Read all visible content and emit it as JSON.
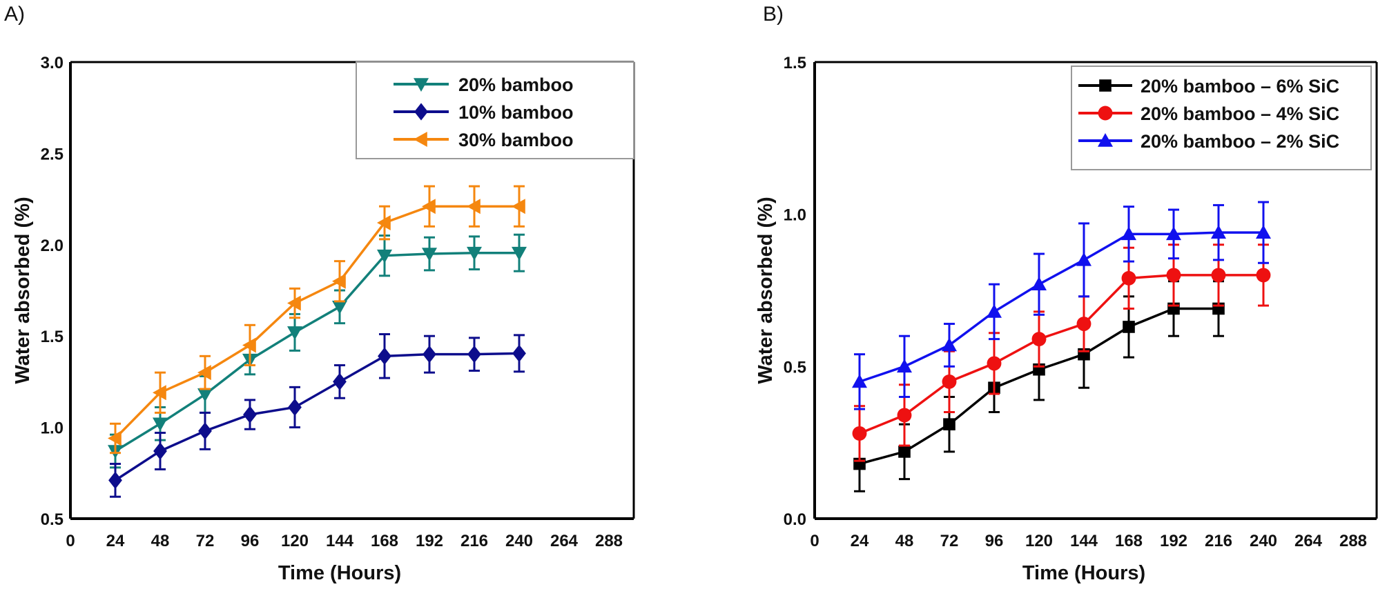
{
  "chart_data": [
    {
      "panel_label": "A)",
      "type": "line",
      "xlabel": "Time (Hours)",
      "ylabel": "Water absorbed (%)",
      "xlim": [
        0,
        288
      ],
      "ylim": [
        0.5,
        3.0
      ],
      "xticks": [
        0,
        24,
        48,
        72,
        96,
        120,
        144,
        168,
        192,
        216,
        240,
        264,
        288
      ],
      "yticks": [
        "0.5",
        "1.0",
        "1.5",
        "2.0",
        "2.5",
        "3.0"
      ],
      "grid": false,
      "legend_position": "top-right",
      "x": [
        24,
        48,
        72,
        96,
        120,
        144,
        168,
        192,
        216,
        240
      ],
      "series": [
        {
          "name": "20% bamboo",
          "color": "#12807a",
          "marker": "triangle-down",
          "values": [
            0.87,
            1.02,
            1.18,
            1.37,
            1.52,
            1.66,
            1.94,
            1.95,
            1.955,
            1.955
          ],
          "error": [
            0.09,
            0.09,
            0.1,
            0.08,
            0.1,
            0.09,
            0.11,
            0.09,
            0.09,
            0.1
          ]
        },
        {
          "name": "10% bamboo",
          "color": "#0d0d8c",
          "marker": "diamond",
          "values": [
            0.71,
            0.87,
            0.98,
            1.07,
            1.11,
            1.25,
            1.39,
            1.4,
            1.4,
            1.405
          ],
          "error": [
            0.09,
            0.1,
            0.1,
            0.08,
            0.11,
            0.09,
            0.12,
            0.1,
            0.09,
            0.1
          ]
        },
        {
          "name": "30% bamboo",
          "color": "#f5870f",
          "marker": "triangle-left",
          "values": [
            0.94,
            1.19,
            1.3,
            1.45,
            1.68,
            1.8,
            2.12,
            2.21,
            2.21,
            2.21
          ],
          "error": [
            0.08,
            0.11,
            0.09,
            0.11,
            0.08,
            0.11,
            0.09,
            0.11,
            0.11,
            0.11
          ]
        }
      ]
    },
    {
      "panel_label": "B)",
      "type": "line",
      "xlabel": "Time (Hours)",
      "ylabel": "Water absorbed (%)",
      "xlim": [
        0,
        288
      ],
      "ylim": [
        0.0,
        1.5
      ],
      "xticks": [
        0,
        24,
        48,
        72,
        96,
        120,
        144,
        168,
        192,
        216,
        240,
        264,
        288
      ],
      "yticks": [
        "0.0",
        "0.5",
        "1.0",
        "1.5"
      ],
      "grid": false,
      "legend_position": "top-right",
      "x": [
        24,
        48,
        72,
        96,
        120,
        144,
        168,
        192,
        216,
        240
      ],
      "series": [
        {
          "name": "20% bamboo – 6% SiC",
          "color": "#000000",
          "marker": "square",
          "values": [
            0.18,
            0.22,
            0.31,
            0.43,
            0.49,
            0.54,
            0.63,
            0.69,
            0.69,
            null
          ],
          "error": [
            0.09,
            0.09,
            0.09,
            0.08,
            0.1,
            0.11,
            0.1,
            0.09,
            0.09,
            null
          ]
        },
        {
          "name": "20% bamboo – 4% SiC",
          "color": "#ee1111",
          "marker": "circle",
          "values": [
            0.28,
            0.34,
            0.45,
            0.51,
            0.59,
            0.64,
            0.79,
            0.8,
            0.8,
            0.8
          ],
          "error": [
            0.09,
            0.1,
            0.1,
            0.1,
            0.09,
            0.09,
            0.1,
            0.1,
            0.1,
            0.1
          ]
        },
        {
          "name": "20% bamboo – 2% SiC",
          "color": "#1111ee",
          "marker": "triangle-up",
          "values": [
            0.45,
            0.5,
            0.57,
            0.68,
            0.77,
            0.85,
            0.935,
            0.935,
            0.94,
            0.94
          ],
          "error": [
            0.09,
            0.1,
            0.07,
            0.09,
            0.1,
            0.12,
            0.09,
            0.08,
            0.09,
            0.1
          ]
        }
      ]
    }
  ]
}
